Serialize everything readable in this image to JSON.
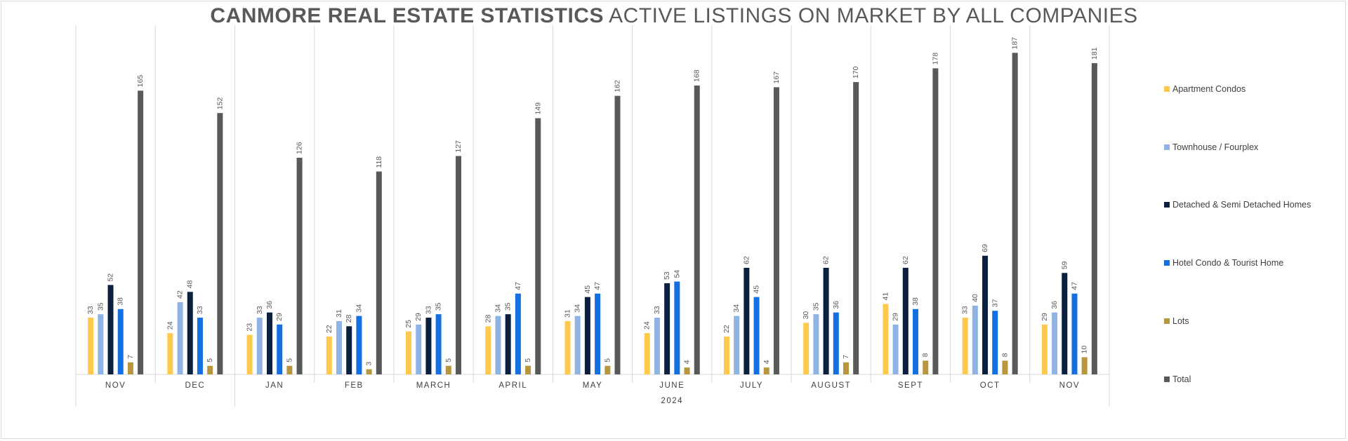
{
  "title": {
    "bold": "CANMORE REAL ESTATE STATISTICS",
    "regular": "ACTIVE LISTINGS ON MARKET BY ALL COMPANIES"
  },
  "chart_data": {
    "type": "bar",
    "title": "CANMORE REAL ESTATE STATISTICS ACTIVE LISTINGS ON MARKET BY ALL COMPANIES",
    "categories": [
      "NOV",
      "DEC",
      "JAN",
      "FEB",
      "MARCH",
      "APRIL",
      "MAY",
      "JUNE",
      "JULY",
      "AUGUST",
      "SEPT",
      "OCT",
      "NOV"
    ],
    "year_group_label": "2024",
    "ylim": [
      0,
      190
    ],
    "grid": false,
    "legend_position": "right",
    "series": [
      {
        "name": "Apartment Condos",
        "color": "#FFC94D",
        "values": [
          33,
          24,
          23,
          22,
          25,
          28,
          31,
          24,
          22,
          30,
          41,
          33,
          29
        ]
      },
      {
        "name": "Townhouse / Fourplex",
        "color": "#8FB4E3",
        "values": [
          35,
          42,
          33,
          31,
          29,
          34,
          34,
          33,
          34,
          35,
          29,
          40,
          36
        ]
      },
      {
        "name": "Detached & Semi Detached Homes",
        "color": "#0B1F3F",
        "values": [
          52,
          48,
          36,
          28,
          33,
          35,
          45,
          53,
          62,
          62,
          62,
          69,
          59
        ]
      },
      {
        "name": "Hotel Condo & Tourist Home",
        "color": "#1470E0",
        "values": [
          38,
          33,
          29,
          34,
          35,
          47,
          47,
          54,
          45,
          36,
          38,
          37,
          47
        ]
      },
      {
        "name": "Lots",
        "color": "#B8953F",
        "values": [
          7,
          5,
          5,
          3,
          5,
          5,
          5,
          4,
          4,
          7,
          8,
          8,
          10
        ]
      },
      {
        "name": "Total",
        "color": "#595959",
        "values": [
          165,
          152,
          126,
          118,
          127,
          149,
          162,
          168,
          167,
          170,
          178,
          187,
          181
        ]
      }
    ]
  }
}
